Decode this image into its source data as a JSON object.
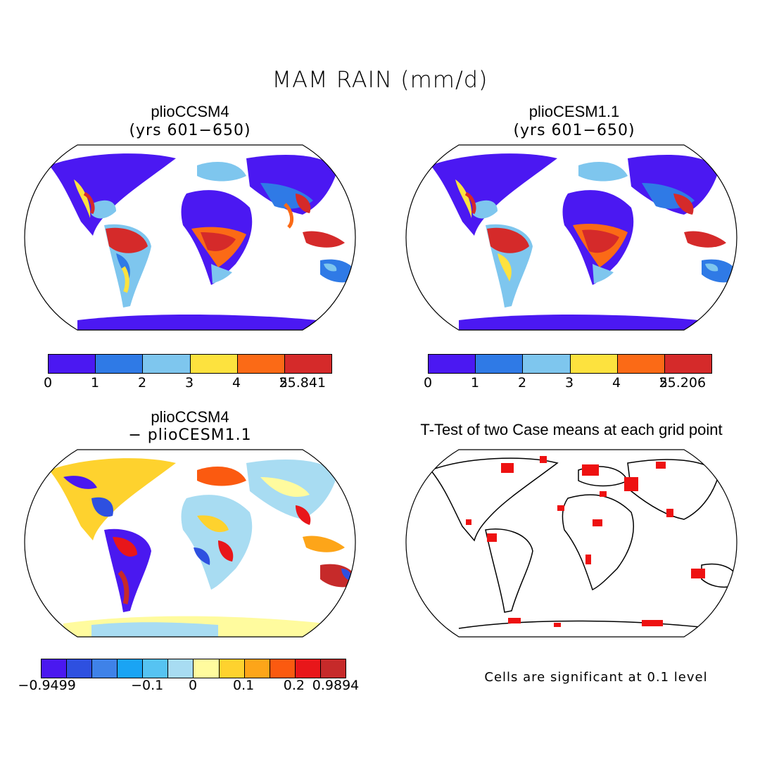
{
  "title": "MAM RAIN (mm/d)",
  "panels": [
    {
      "id": "a",
      "title": "plioCCSM4",
      "subtitle": "(yrs 601−650)",
      "colorbar": {
        "colors": [
          "#4b18f2",
          "#2f7ae6",
          "#7ec6ee",
          "#fde23e",
          "#fb6a16",
          "#d52a2a"
        ],
        "labels": [
          "0",
          "1",
          "2",
          "3",
          "4",
          "5",
          "25.841"
        ]
      }
    },
    {
      "id": "b",
      "title": "plioCESM1.1",
      "subtitle": "(yrs 601−650)",
      "colorbar": {
        "colors": [
          "#4b18f2",
          "#2f7ae6",
          "#7ec6ee",
          "#fde23e",
          "#fb6a16",
          "#d52a2a"
        ],
        "labels": [
          "0",
          "1",
          "2",
          "3",
          "4",
          "5",
          "25.206"
        ]
      }
    },
    {
      "id": "c",
      "title": "plioCCSM4",
      "subtitle": "− plioCESM1.1",
      "colorbar": {
        "colors": [
          "#4a18f0",
          "#2e50e0",
          "#3f82e8",
          "#1aa4f4",
          "#56c3f2",
          "#a8dcf2",
          "#fffb9e",
          "#fed22e",
          "#fda519",
          "#fb5a10",
          "#e8161a",
          "#c62a2a"
        ],
        "labels": [
          "−0.9499",
          "−0.1",
          "0",
          "0.1",
          "0.2",
          "0.9894"
        ]
      }
    },
    {
      "id": "d",
      "title": "T-Test of two Case means at each grid point",
      "subtitle": "",
      "footnote": "Cells are significant at 0.1 level"
    }
  ]
}
